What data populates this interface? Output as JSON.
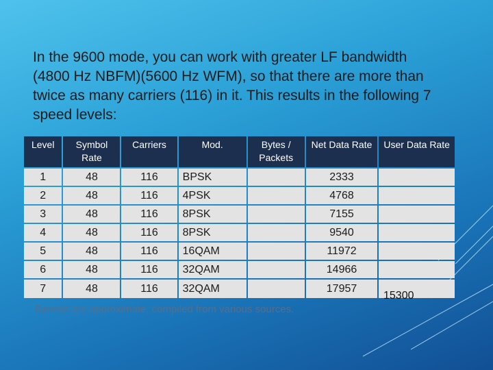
{
  "intro_text": "In the 9600 mode, you can work with greater LF bandwidth (4800 Hz NBFM)(5600 Hz WFM), so that there are more than twice as many carriers (116) in it. This results in the following 7 speed levels:",
  "table": {
    "headers": [
      "Level",
      "Symbol Rate",
      "Carriers",
      "Mod.",
      "Bytes / Packets",
      "Net Data Rate",
      "User Data Rate"
    ],
    "rows": [
      [
        "1",
        "48",
        "116",
        "BPSK",
        "",
        "2333",
        ""
      ],
      [
        "2",
        "48",
        "116",
        "4PSK",
        "",
        "4768",
        ""
      ],
      [
        "3",
        "48",
        "116",
        "8PSK",
        "",
        "7155",
        ""
      ],
      [
        "4",
        "48",
        "116",
        "8PSK",
        "",
        "9540",
        ""
      ],
      [
        "5",
        "48",
        "116",
        "16QAM",
        "",
        "11972",
        ""
      ],
      [
        "6",
        "48",
        "116",
        "32QAM",
        "",
        "14966",
        ""
      ],
      [
        "7",
        "48",
        "116",
        "32QAM",
        "",
        "17957",
        ""
      ]
    ]
  },
  "footnote": "Speeds are approximate, compiled from various sources.",
  "overlay_value": "15300"
}
